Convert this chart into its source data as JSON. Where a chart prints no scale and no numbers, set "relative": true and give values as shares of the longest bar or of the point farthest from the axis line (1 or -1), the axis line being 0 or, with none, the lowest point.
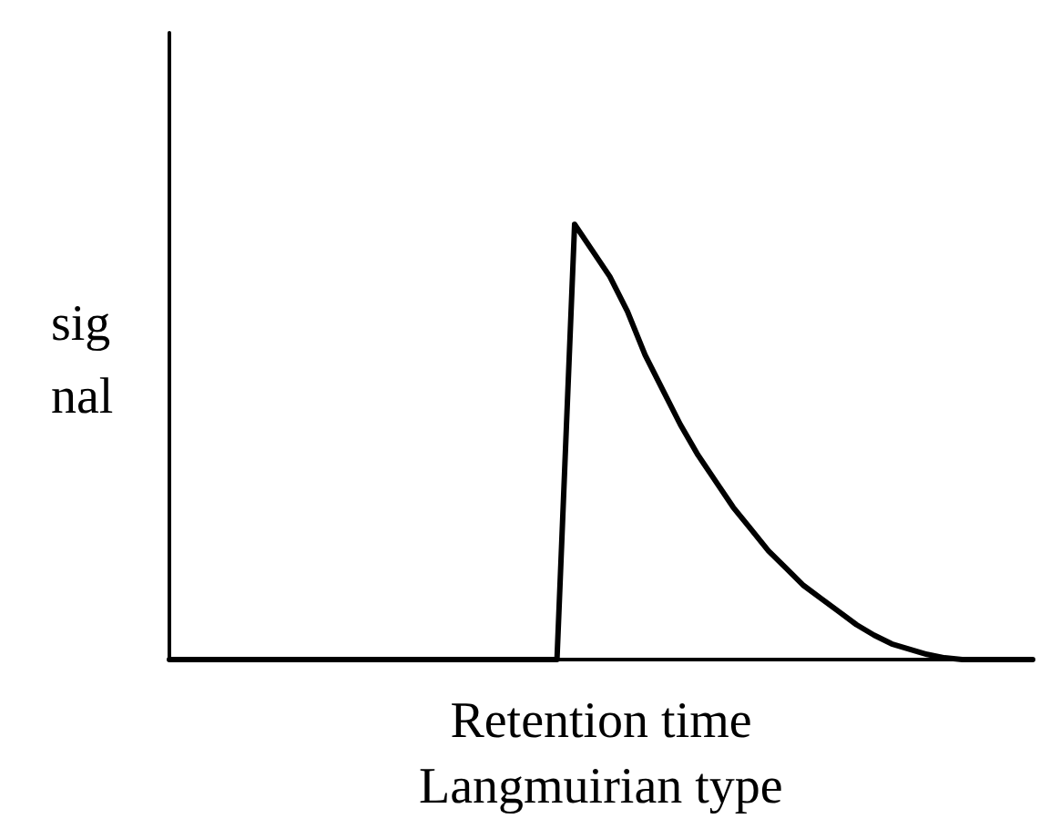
{
  "chart_data": {
    "type": "line",
    "relative": true,
    "ylabel": "sig\nnal",
    "xlabel": "Retention time",
    "annotations": [
      "Langmuirian type"
    ],
    "categories": [
      null,
      null,
      null,
      null,
      null,
      null,
      null,
      null,
      null,
      null,
      null,
      null,
      null,
      null,
      null,
      null,
      null,
      null,
      null,
      null,
      null,
      null,
      null,
      null,
      null,
      null,
      null,
      null,
      null,
      null,
      null,
      null,
      null,
      null,
      null,
      null,
      null,
      null,
      null,
      null,
      null,
      null,
      null,
      null,
      null,
      null,
      null,
      null,
      null,
      null
    ],
    "series": [
      {
        "color": "#000000",
        "values": [
          0,
          0,
          0,
          0,
          0,
          0,
          0,
          0,
          0,
          0,
          0,
          0,
          0,
          0,
          0,
          0,
          0,
          0,
          0,
          0,
          0,
          0,
          0,
          1.0,
          0.94,
          0.88,
          0.8,
          0.7,
          0.62,
          0.54,
          0.47,
          0.41,
          0.35,
          0.3,
          0.25,
          0.21,
          0.17,
          0.14,
          0.11,
          0.08,
          0.056,
          0.036,
          0.024,
          0.012,
          0.004,
          0,
          0,
          0,
          0,
          0
        ]
      }
    ],
    "grid": false,
    "marker": "none",
    "line_style": "solid"
  }
}
